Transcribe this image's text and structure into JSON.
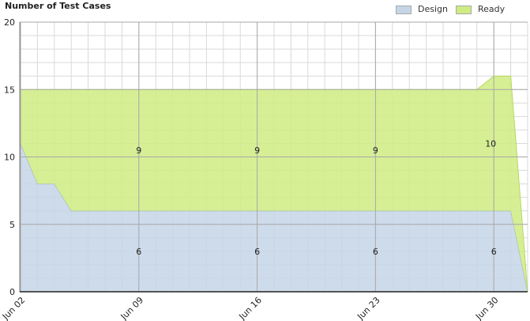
{
  "chart_data": {
    "type": "area",
    "title": "Number of Test Cases",
    "ylim": [
      0,
      20
    ],
    "y_ticks": [
      "0",
      "5",
      "10",
      "15",
      "20"
    ],
    "x_tick_labels": [
      "Jun 02",
      "Jun 09",
      "Jun 16",
      "Jun 23",
      "Jun 30"
    ],
    "x_tick_days": [
      0,
      7,
      14,
      21,
      28
    ],
    "x_days": [
      0,
      1,
      2,
      3,
      4,
      5,
      6,
      7,
      8,
      9,
      10,
      11,
      12,
      13,
      14,
      15,
      16,
      17,
      18,
      19,
      20,
      21,
      22,
      23,
      24,
      25,
      26,
      27,
      28,
      29,
      30
    ],
    "stacked": true,
    "series": [
      {
        "name": "Design",
        "color": "#c5d5e6",
        "line_color": "#9fb6cc",
        "values": [
          11,
          8,
          8,
          6,
          6,
          6,
          6,
          6,
          6,
          6,
          6,
          6,
          6,
          6,
          6,
          6,
          6,
          6,
          6,
          6,
          6,
          6,
          6,
          6,
          6,
          6,
          6,
          6,
          6,
          6,
          0
        ]
      },
      {
        "name": "Ready",
        "color": "#cfec83",
        "line_color": "#b6d860",
        "values": [
          4,
          7,
          7,
          9,
          9,
          9,
          9,
          9,
          9,
          9,
          9,
          9,
          9,
          9,
          9,
          9,
          9,
          9,
          9,
          9,
          9,
          9,
          9,
          9,
          9,
          9,
          9,
          9,
          10,
          10,
          0
        ]
      }
    ],
    "data_labels": [
      {
        "series": "Ready",
        "day": 7,
        "text": "9"
      },
      {
        "series": "Ready",
        "day": 14,
        "text": "9"
      },
      {
        "series": "Ready",
        "day": 21,
        "text": "9"
      },
      {
        "series": "Ready",
        "day": 28,
        "text": "10"
      },
      {
        "series": "Design",
        "day": 7,
        "text": "6"
      },
      {
        "series": "Design",
        "day": 14,
        "text": "6"
      },
      {
        "series": "Design",
        "day": 21,
        "text": "6"
      },
      {
        "series": "Design",
        "day": 28,
        "text": "6"
      }
    ],
    "grid": true,
    "legend_position": "top-right"
  }
}
